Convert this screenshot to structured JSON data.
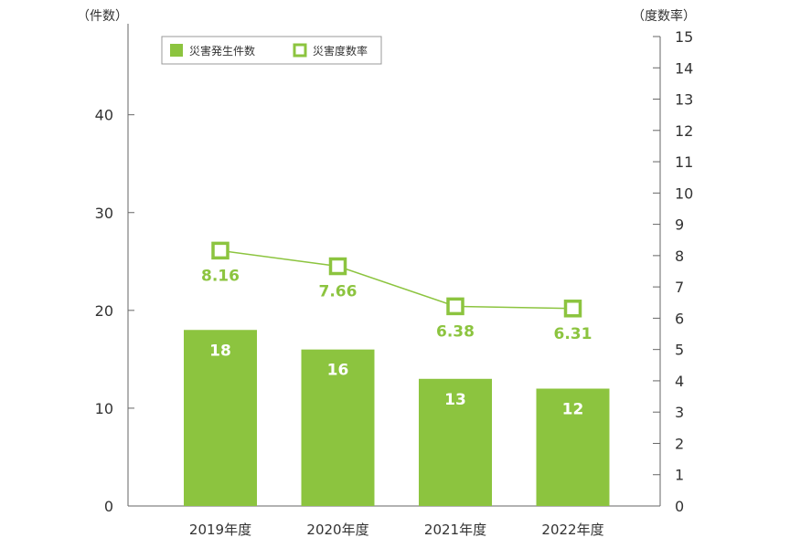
{
  "chart_data": {
    "type": "bar",
    "categories": [
      "2019年度",
      "2020年度",
      "2021年度",
      "2022年度"
    ],
    "series": [
      {
        "name": "災害発生件数",
        "type": "bar",
        "axis": "left",
        "values": [
          18,
          16,
          13,
          12
        ]
      },
      {
        "name": "災害度数率",
        "type": "line",
        "axis": "right",
        "values": [
          8.16,
          7.66,
          6.38,
          6.31
        ]
      }
    ],
    "left_axis": {
      "label": "（件数）",
      "ylim": [
        0,
        48
      ],
      "ticks": [
        0,
        10,
        20,
        30,
        40
      ]
    },
    "right_axis": {
      "label": "（度数率）",
      "ylim": [
        0,
        15
      ],
      "ticks": [
        0,
        1,
        2,
        3,
        4,
        5,
        6,
        7,
        8,
        9,
        10,
        11,
        12,
        13,
        14,
        15
      ]
    },
    "value_labels": {
      "bars": [
        "18",
        "16",
        "13",
        "12"
      ],
      "line": [
        "8.16",
        "7.66",
        "6.38",
        "6.31"
      ]
    },
    "legend": {
      "placement": "top-left",
      "items": [
        "災害発生件数",
        "災害度数率"
      ]
    },
    "grid": false,
    "colors": {
      "bar": "#8cc43f",
      "line": "#8cc43f",
      "marker_fill": "#ffffff"
    }
  }
}
